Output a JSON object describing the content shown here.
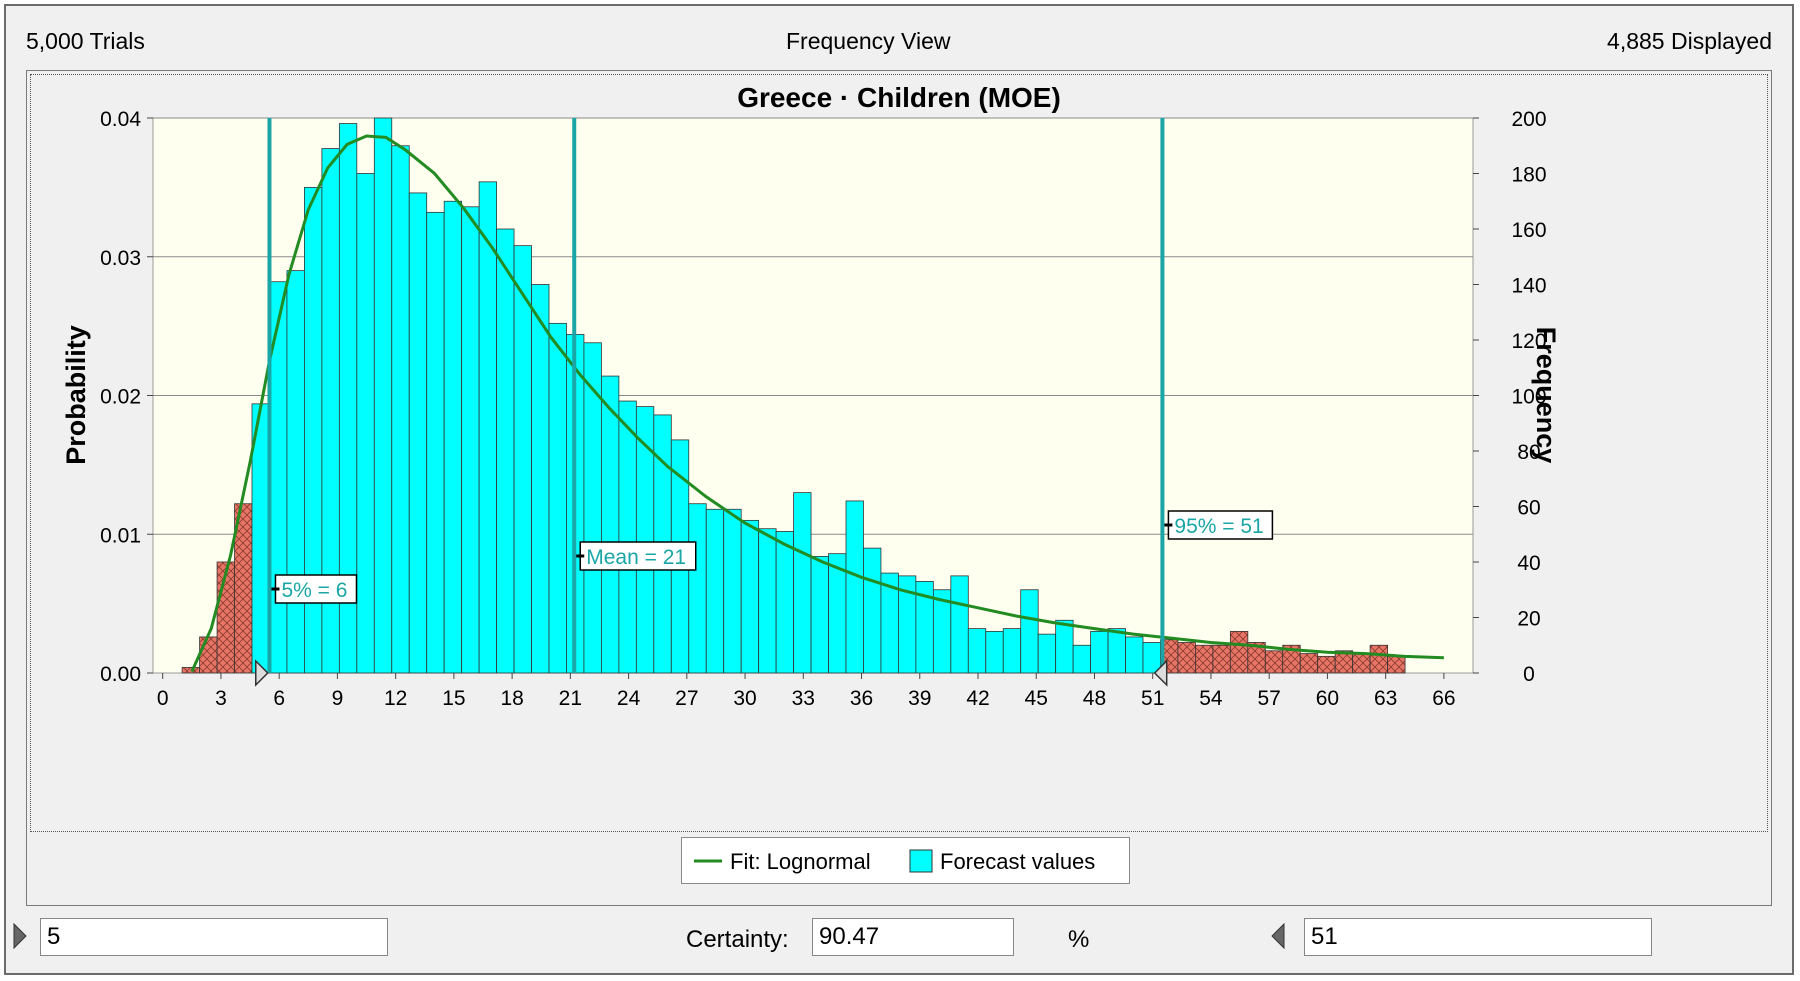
{
  "header": {
    "trials": "5,000 Trials",
    "view": "Frequency View",
    "displayed": "4,885 Displayed"
  },
  "chart_data": {
    "type": "bar",
    "title": "Greece · Children (MOE)",
    "ylabel": "Probability",
    "y2label": "Frequency",
    "x_ticks": [
      0,
      3,
      6,
      9,
      12,
      15,
      18,
      21,
      24,
      27,
      30,
      33,
      36,
      39,
      42,
      45,
      48,
      51,
      54,
      57,
      60,
      63,
      66
    ],
    "xlim": [
      -0.5,
      67.5
    ],
    "ylim_probability": [
      0,
      0.04
    ],
    "y_ticks_probability": [
      "0.00",
      "0.01",
      "0.02",
      "0.03",
      "0.04"
    ],
    "ylim_frequency": [
      0,
      200
    ],
    "y_ticks_frequency": [
      0,
      20,
      40,
      60,
      80,
      100,
      120,
      140,
      160,
      180,
      200
    ],
    "bin_width": 0.9,
    "x_start": 1.0,
    "frequencies": [
      2,
      13,
      40,
      61,
      97,
      141,
      145,
      175,
      189,
      198,
      180,
      200,
      190,
      173,
      166,
      170,
      168,
      177,
      160,
      154,
      140,
      126,
      122,
      119,
      107,
      98,
      96,
      93,
      84,
      61,
      59,
      59,
      55,
      52,
      51,
      65,
      42,
      43,
      62,
      45,
      36,
      35,
      33,
      30,
      35,
      16,
      15,
      16,
      30,
      14,
      19,
      10,
      15,
      16,
      13,
      11,
      12,
      11,
      10,
      10,
      15,
      11,
      8,
      10,
      7,
      6,
      8,
      7,
      10,
      6
    ],
    "excluded_low_max": 5,
    "excluded_high_min": 51,
    "fit_curve": {
      "name": "Fit: Lognormal",
      "x": [
        1.5,
        2.5,
        3.5,
        4.5,
        5.5,
        6.5,
        7.5,
        8.5,
        9.5,
        10.5,
        11.5,
        12.5,
        14,
        15.5,
        17,
        18.5,
        20,
        21.5,
        23,
        24.5,
        26,
        28,
        30,
        32,
        34,
        36,
        38,
        40,
        42,
        44,
        46,
        48,
        50,
        52,
        54,
        56,
        58,
        60,
        62,
        64,
        66
      ],
      "y": [
        0.0001,
        0.0032,
        0.0085,
        0.0152,
        0.0225,
        0.0287,
        0.0334,
        0.0364,
        0.0381,
        0.0387,
        0.0386,
        0.0377,
        0.036,
        0.0335,
        0.0306,
        0.0274,
        0.0242,
        0.0215,
        0.0191,
        0.0169,
        0.0149,
        0.0127,
        0.0108,
        0.0093,
        0.008,
        0.0069,
        0.006,
        0.0053,
        0.0047,
        0.0041,
        0.0036,
        0.0032,
        0.0028,
        0.0025,
        0.0022,
        0.002,
        0.0017,
        0.0015,
        0.0014,
        0.0012,
        0.0011
      ]
    },
    "markers": [
      {
        "x": 5.5,
        "label": "5% = 6"
      },
      {
        "x": 21.2,
        "label": "Mean = 21"
      },
      {
        "x": 51.5,
        "label": "95% = 51"
      }
    ],
    "legend": [
      {
        "label": "Fit: Lognormal",
        "color": "#228B22"
      },
      {
        "label": "Forecast values",
        "color": "#00FFFF"
      }
    ],
    "colors": {
      "bar": "#00FFFF",
      "excluded": "#E87565",
      "plot_bg": "#FFFFF0",
      "marker": "#1AA6A6",
      "fit": "#228B22"
    }
  },
  "controls": {
    "left_value": "5",
    "certainty_label": "Certainty:",
    "certainty_value": "90.47",
    "percent": "%",
    "right_value": "51"
  }
}
